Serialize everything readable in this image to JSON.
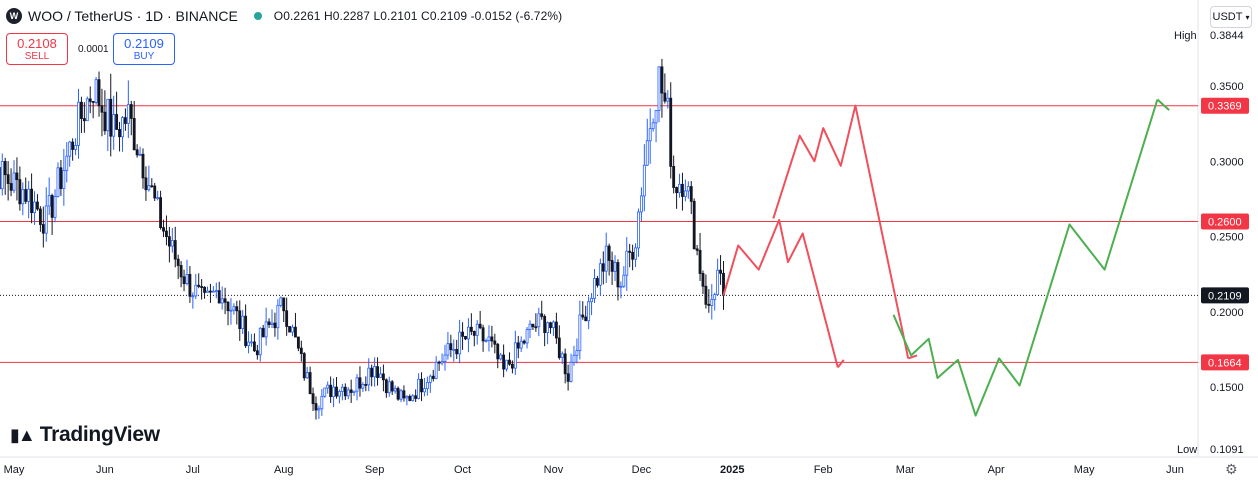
{
  "header": {
    "symbol_icon": "W",
    "title": "WOO / TetherUS · 1D · BINANCE",
    "ohlc": {
      "open_label": "O",
      "open": "0.2261",
      "high_label": "H",
      "high": "0.2287",
      "low_label": "L",
      "low": "0.2101",
      "close_label": "C",
      "close": "0.2109",
      "change": "-0.0152 (-6.72%)"
    }
  },
  "trade": {
    "sell_price": "0.2108",
    "sell_label": "SELL",
    "spread": "0.0001",
    "buy_price": "0.2109",
    "buy_label": "BUY"
  },
  "currency_button": "USDT",
  "logo_text": "TradingView",
  "colors": {
    "up": "#2962ff",
    "down": "#131722",
    "level_line": "#f23645",
    "bear_path": "#f0505b",
    "bull_path": "#4caf50",
    "axis_text": "#131722"
  },
  "chart_data": {
    "type": "candlestick",
    "symbol": "WOO/USDT",
    "interval": "1D",
    "ylim": [
      0.085,
      0.395
    ],
    "y_ticks": [
      0.15,
      0.2,
      0.25,
      0.3,
      0.35
    ],
    "y_tick_labels": [
      "0.1500",
      "0.2000",
      "0.2500",
      "0.3000",
      "0.3500"
    ],
    "x_ticks": [
      {
        "label": "May",
        "date": "2024-05-01",
        "bold": false
      },
      {
        "label": "Jun",
        "date": "2024-06-01",
        "bold": false
      },
      {
        "label": "Jul",
        "date": "2024-07-01",
        "bold": false
      },
      {
        "label": "Aug",
        "date": "2024-08-01",
        "bold": false
      },
      {
        "label": "Sep",
        "date": "2024-09-01",
        "bold": false
      },
      {
        "label": "Oct",
        "date": "2024-10-01",
        "bold": false
      },
      {
        "label": "Nov",
        "date": "2024-11-01",
        "bold": false
      },
      {
        "label": "Dec",
        "date": "2024-12-01",
        "bold": false
      },
      {
        "label": "2025",
        "date": "2025-01-01",
        "bold": true
      },
      {
        "label": "Feb",
        "date": "2025-02-01",
        "bold": false
      },
      {
        "label": "Mar",
        "date": "2025-03-01",
        "bold": false
      },
      {
        "label": "Apr",
        "date": "2025-04-01",
        "bold": false
      },
      {
        "label": "May",
        "date": "2025-05-01",
        "bold": false
      },
      {
        "label": "Jun",
        "date": "2025-06-01",
        "bold": false
      }
    ],
    "anchors": [
      [
        "2024-04-20",
        0.31
      ],
      [
        "2024-04-27",
        0.29
      ],
      [
        "2024-05-05",
        0.28
      ],
      [
        "2024-05-12",
        0.26
      ],
      [
        "2024-05-17",
        0.29
      ],
      [
        "2024-05-22",
        0.32
      ],
      [
        "2024-05-28",
        0.35
      ],
      [
        "2024-06-04",
        0.32
      ],
      [
        "2024-06-09",
        0.33
      ],
      [
        "2024-06-14",
        0.3
      ],
      [
        "2024-06-19",
        0.265
      ],
      [
        "2024-06-24",
        0.24
      ],
      [
        "2024-06-29",
        0.22
      ],
      [
        "2024-07-05",
        0.205
      ],
      [
        "2024-07-10",
        0.215
      ],
      [
        "2024-07-15",
        0.2
      ],
      [
        "2024-07-22",
        0.175
      ],
      [
        "2024-07-27",
        0.19
      ],
      [
        "2024-08-01",
        0.205
      ],
      [
        "2024-08-05",
        0.18
      ],
      [
        "2024-08-08",
        0.16
      ],
      [
        "2024-08-12",
        0.14
      ],
      [
        "2024-08-18",
        0.15
      ],
      [
        "2024-08-25",
        0.15
      ],
      [
        "2024-09-01",
        0.165
      ],
      [
        "2024-09-06",
        0.15
      ],
      [
        "2024-09-11",
        0.14
      ],
      [
        "2024-09-16",
        0.15
      ],
      [
        "2024-09-22",
        0.165
      ],
      [
        "2024-09-30",
        0.18
      ],
      [
        "2024-10-05",
        0.185
      ],
      [
        "2024-10-10",
        0.18
      ],
      [
        "2024-10-15",
        0.16
      ],
      [
        "2024-10-20",
        0.175
      ],
      [
        "2024-10-25",
        0.19
      ],
      [
        "2024-10-30",
        0.195
      ],
      [
        "2024-11-03",
        0.175
      ],
      [
        "2024-11-06",
        0.158
      ],
      [
        "2024-11-10",
        0.19
      ],
      [
        "2024-11-14",
        0.215
      ],
      [
        "2024-11-19",
        0.235
      ],
      [
        "2024-11-24",
        0.22
      ],
      [
        "2024-11-29",
        0.25
      ],
      [
        "2024-12-02",
        0.3
      ],
      [
        "2024-12-05",
        0.34
      ],
      [
        "2024-12-07",
        0.355
      ],
      [
        "2024-12-10",
        0.33
      ],
      [
        "2024-12-12",
        0.285
      ],
      [
        "2024-12-16",
        0.29
      ],
      [
        "2024-12-20",
        0.24
      ],
      [
        "2024-12-24",
        0.2
      ],
      [
        "2024-12-27",
        0.225
      ],
      [
        "2024-12-29",
        0.2109
      ]
    ],
    "extremes": {
      "high_label": "High",
      "high": "0.3844",
      "low_label": "Low",
      "low": "0.1091"
    },
    "levels": [
      {
        "value": 0.3369,
        "label": "0.3369",
        "color": "#f23645"
      },
      {
        "value": 0.26,
        "label": "0.2600",
        "color": "#f23645"
      },
      {
        "value": 0.1664,
        "label": "0.1664",
        "color": "#f23645"
      }
    ],
    "last_price": {
      "value": 0.2109,
      "label": "0.2109"
    },
    "projection_bearish": {
      "color": "#f0505b",
      "path_a": [
        [
          "2024-12-29",
          0.2109
        ],
        [
          "2025-01-03",
          0.244
        ],
        [
          "2025-01-10",
          0.228
        ],
        [
          "2025-01-17",
          0.261
        ],
        [
          "2025-01-20",
          0.233
        ],
        [
          "2025-01-25",
          0.252
        ],
        [
          "2025-02-06",
          0.163
        ]
      ],
      "arrow_a": [
        "2025-02-08",
        0.168
      ],
      "path_b": [
        [
          "2025-01-15",
          0.262
        ],
        [
          "2025-01-24",
          0.317
        ],
        [
          "2025-01-29",
          0.3
        ],
        [
          "2025-02-01",
          0.322
        ],
        [
          "2025-02-07",
          0.297
        ],
        [
          "2025-02-12",
          0.337
        ],
        [
          "2025-03-02",
          0.169
        ]
      ],
      "arrow_b": [
        "2025-03-05",
        0.171
      ]
    },
    "projection_bullish": {
      "color": "#4caf50",
      "path": [
        [
          "2025-02-25",
          0.198
        ],
        [
          "2025-03-03",
          0.171
        ],
        [
          "2025-03-09",
          0.182
        ],
        [
          "2025-03-12",
          0.156
        ],
        [
          "2025-03-19",
          0.168
        ],
        [
          "2025-03-25",
          0.131
        ],
        [
          "2025-04-02",
          0.169
        ],
        [
          "2025-04-09",
          0.151
        ],
        [
          "2025-04-26",
          0.258
        ],
        [
          "2025-05-08",
          0.228
        ],
        [
          "2025-05-26",
          0.341
        ]
      ],
      "arrow": [
        "2025-05-30",
        0.334
      ]
    }
  }
}
